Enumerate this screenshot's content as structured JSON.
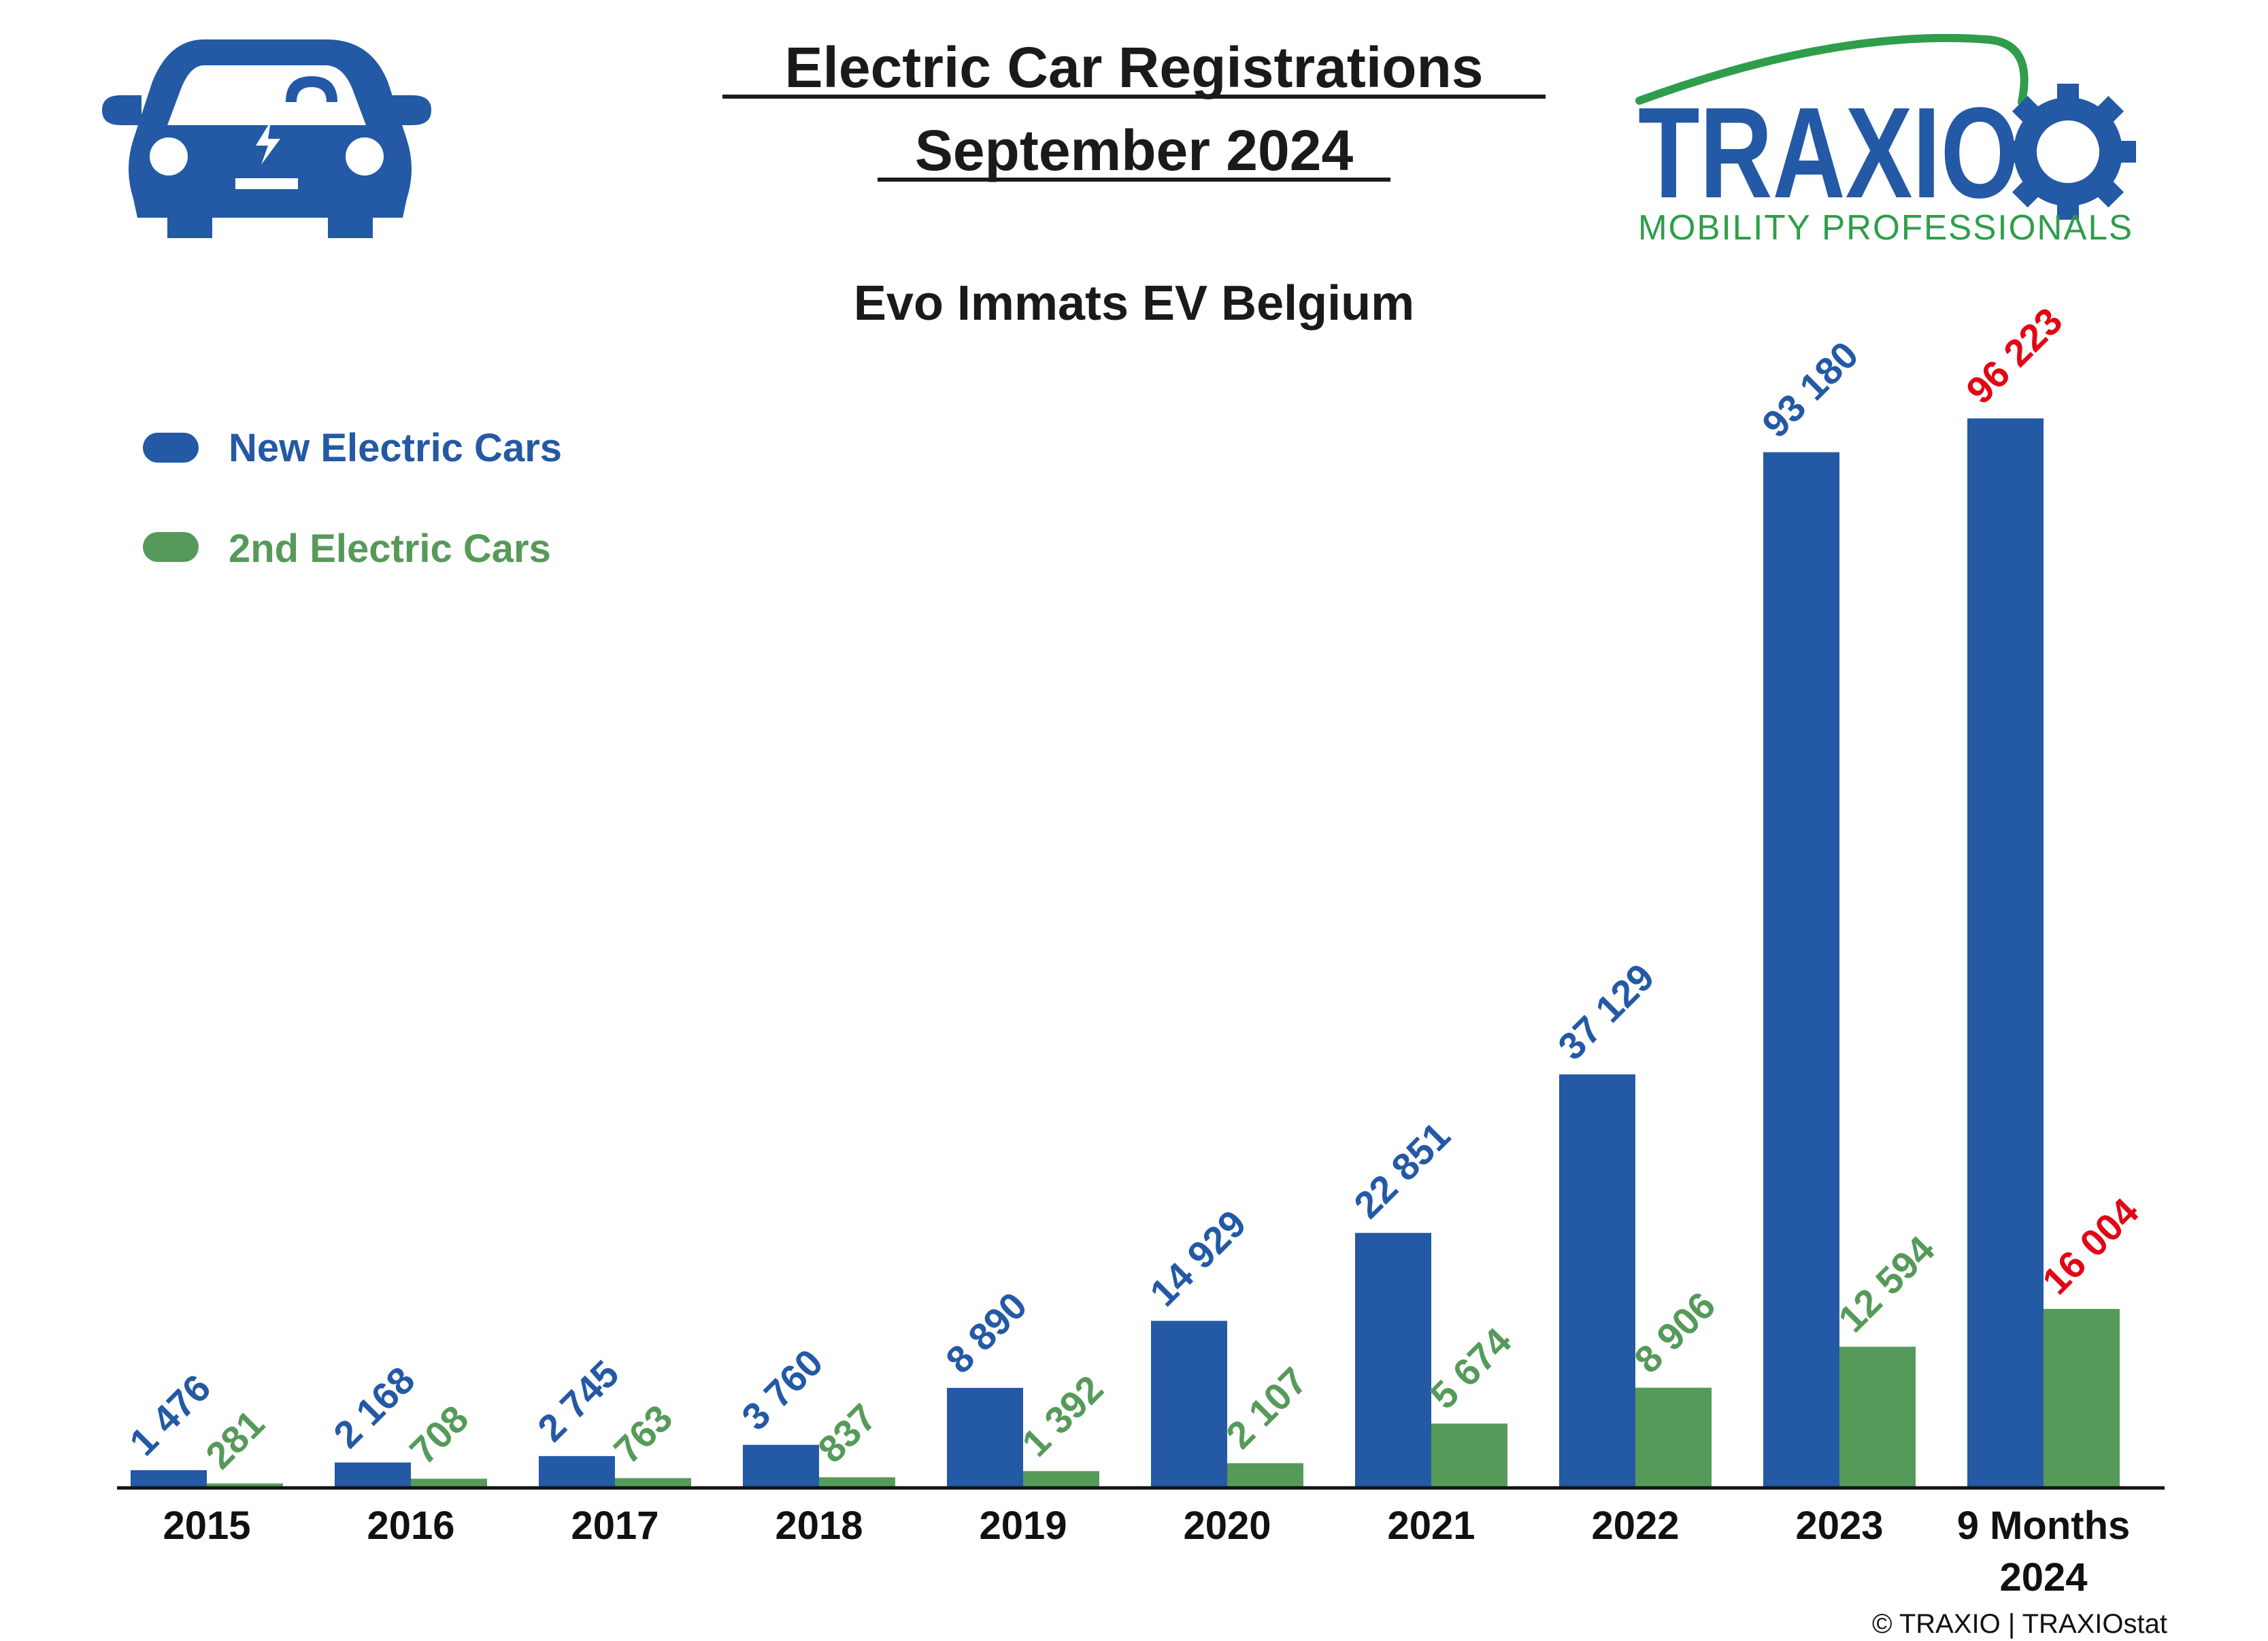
{
  "header": {
    "title_line1": "Electric Car Registrations",
    "title_line2": "September 2024"
  },
  "logo": {
    "brand": "TRAXIO",
    "tagline": "MOBILITY PROFESSIONALS",
    "icon": "gear-icon"
  },
  "car_icon": "electric-car-icon",
  "credit": "© TRAXIO | TRAXIOstat",
  "colors": {
    "new": "#2359a5",
    "second": "#569a59",
    "highlight": "#e30613",
    "logo_blue": "#2359a5",
    "logo_green": "#2e9e4a"
  },
  "chart_data": {
    "type": "bar",
    "title": "Evo Immats EV Belgium",
    "categories": [
      "2015",
      "2016",
      "2017",
      "2018",
      "2019",
      "2020",
      "2021",
      "2022",
      "2023",
      "9 Months 2024"
    ],
    "series": [
      {
        "name": "New Electric Cars",
        "values": [
          1476,
          2168,
          2745,
          3760,
          8890,
          14929,
          22851,
          37129,
          93180,
          96223
        ],
        "labels": [
          "1 476",
          "2 168",
          "2 745",
          "3 760",
          "8 890",
          "14 929",
          "22 851",
          "37 129",
          "93 180",
          "96 223"
        ]
      },
      {
        "name": "2nd Electric Cars",
        "values": [
          281,
          708,
          763,
          837,
          1392,
          2107,
          5674,
          8906,
          12594,
          16004
        ],
        "labels": [
          "281",
          "708",
          "763",
          "837",
          "1 392",
          "2 107",
          "5 674",
          "8 906",
          "12 594",
          "16 004"
        ]
      }
    ],
    "highlight_last_category": true,
    "legend_position": "top-left",
    "grid": false,
    "xlabel": "",
    "ylabel": ""
  }
}
